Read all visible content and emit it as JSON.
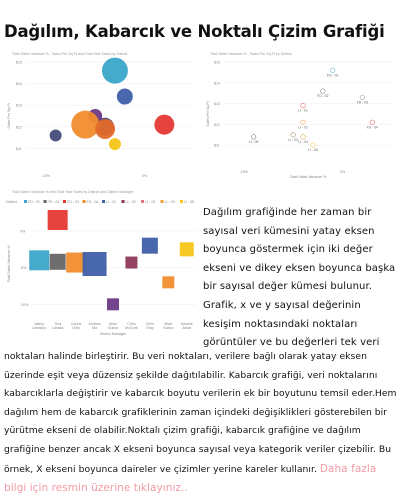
{
  "page": {
    "title": "Dağılım, Kabarcık ve Noktalı Çizim Grafiği",
    "paragraph_right": "Dağılım grafiğinde her zaman bir sayısal veri kümesini yatay eksen boyunca göstermek için iki değer ekseni ve dikey eksen boyunca başka bir sayısal değer kümesi bulunur. Grafik, x ve y sayısal değerinin kesişim noktasındaki noktaları görüntüler ve bu değerleri tek veri",
    "paragraph_bottom": "noktaları halinde birleştirir. Bu veri noktaları, verilere bağlı olarak yatay eksen üzerinde eşit veya düzensiz şekilde dağıtılabilir. Kabarcık grafiği, veri noktalarını kabarcıklarla değiştirir ve kabarcık boyutu verilerin ek bir boyutunu temsil eder.Hem dağılım hem de kabarcık grafiklerinin zaman içindeki değişiklikleri gösterebilen bir yürütme ekseni de olabilir.Noktalı çizim grafiği, kabarcık grafiğine ve dağılım grafiğine benzer ancak X ekseni boyunca sayısal veya kategorik veriler çizebilir. Bu örnek, X ekseni boyunca daireler ve çizimler yerine kareler kullanır. ",
    "link_text": "Daha fazla bilgi için resmin üzerine tıklayınız.."
  },
  "chart_data": [
    {
      "type": "scatter",
      "title": "Total Sales Variance % , Sales Per Sq Ft and Total Year Sales by District",
      "xlabel": "",
      "ylabel": "Sales Per Sq Ft",
      "ylim": [
        10,
        15
      ],
      "yticks": [
        "$15",
        "$14",
        "$13",
        "$12",
        "$11"
      ],
      "xticks": [
        "-10%",
        "0%"
      ],
      "points": [
        {
          "x": -3,
          "y": 14.6,
          "size": 13,
          "color": "#3aa6c9"
        },
        {
          "x": -2,
          "y": 13.4,
          "size": 8,
          "color": "#3f5fa8"
        },
        {
          "x": -5,
          "y": 12.5,
          "size": 7,
          "color": "#6c3a86"
        },
        {
          "x": -4,
          "y": 12.0,
          "size": 9,
          "color": "#3a3f7a"
        },
        {
          "x": -6,
          "y": 12.1,
          "size": 14,
          "color": "#f18d2e"
        },
        {
          "x": -4,
          "y": 11.9,
          "size": 10,
          "color": "#e46b2a"
        },
        {
          "x": 2,
          "y": 12.1,
          "size": 10,
          "color": "#e53935"
        },
        {
          "x": -9,
          "y": 11.6,
          "size": 6,
          "color": "#444c7a"
        },
        {
          "x": -3,
          "y": 11.2,
          "size": 6,
          "color": "#f5c518"
        }
      ]
    },
    {
      "type": "scatter",
      "title": "Total Sales Variance % , Sales Per Sq Ft by District",
      "xlabel": "Total Sales Variance %",
      "ylabel": "Sales Per Sq Ft",
      "ylim": [
        10,
        15
      ],
      "yticks": [
        "$15",
        "$14",
        "$13",
        "$12",
        "$11"
      ],
      "xticks": [
        "-10%",
        "0%"
      ],
      "points": [
        {
          "x": -1,
          "y": 14.6,
          "label": "FD - 01",
          "color": "#3aa6c9"
        },
        {
          "x": -2,
          "y": 13.6,
          "label": "FD - 02",
          "color": "#666666"
        },
        {
          "x": 2,
          "y": 13.3,
          "label": "FD - 03",
          "color": "#888888"
        },
        {
          "x": -4,
          "y": 12.9,
          "label": "LI - 01",
          "color": "#e53935"
        },
        {
          "x": 3,
          "y": 12.1,
          "label": "FD - 04",
          "color": "#e53935"
        },
        {
          "x": -4,
          "y": 12.1,
          "label": "LI - 02",
          "color": "#f18d2e"
        },
        {
          "x": -5,
          "y": 11.5,
          "label": "LI - 03",
          "color": "#8a6d3b"
        },
        {
          "x": -4,
          "y": 11.4,
          "label": "LI - 04",
          "color": "#d4a017"
        },
        {
          "x": -9,
          "y": 11.4,
          "label": "LI - 05",
          "color": "#555555"
        },
        {
          "x": -3,
          "y": 11.0,
          "label": "LI - 06",
          "color": "#f5c518"
        }
      ]
    },
    {
      "type": "scatter",
      "title": "Total Sales Variance % and Total Year Sales by District and District Manager",
      "xlabel": "District Manager",
      "ylabel": "Total Sales Variance %",
      "legend_title": "District",
      "legend": [
        "FD - 01",
        "FD - 02",
        "FD - 03",
        "FD - 04",
        "LI - 01",
        "LI - 02",
        "LI - 03",
        "LI - 04",
        "LI - 05"
      ],
      "categories": [
        "Valery Ushakov",
        "Tina Lassila",
        "Carlos Grilo",
        "Andrew Ma",
        "Allan Guinot",
        "Chris McGurk",
        "Chris Gray",
        "Brad Sutton",
        "Annelie Zubar"
      ],
      "yticks": [
        "0%",
        "-5%",
        "-10%"
      ],
      "points": [
        {
          "category": "Valery Ushakov",
          "y": -4.0,
          "size": 10,
          "color": "#3aa6c9"
        },
        {
          "category": "Tina Lassila",
          "y": 1.5,
          "size": 10,
          "color": "#e53935"
        },
        {
          "category": "Tina Lassila",
          "y": -4.2,
          "size": 8,
          "color": "#666666"
        },
        {
          "category": "Carlos Grilo",
          "y": -4.3,
          "size": 10,
          "color": "#f18d2e"
        },
        {
          "category": "Andrew Ma",
          "y": -4.5,
          "size": 12,
          "color": "#3f5fa8"
        },
        {
          "category": "Allan Guinot",
          "y": -10.0,
          "size": 6,
          "color": "#6c3a86"
        },
        {
          "category": "Chris McGurk",
          "y": -4.3,
          "size": 6,
          "color": "#8e3a5a"
        },
        {
          "category": "Chris Gray",
          "y": -2.0,
          "size": 8,
          "color": "#3f5fa8"
        },
        {
          "category": "Brad Sutton",
          "y": -7.0,
          "size": 6,
          "color": "#f18d2e"
        },
        {
          "category": "Annelie Zubar",
          "y": -2.5,
          "size": 7,
          "color": "#f5c518"
        }
      ]
    }
  ]
}
